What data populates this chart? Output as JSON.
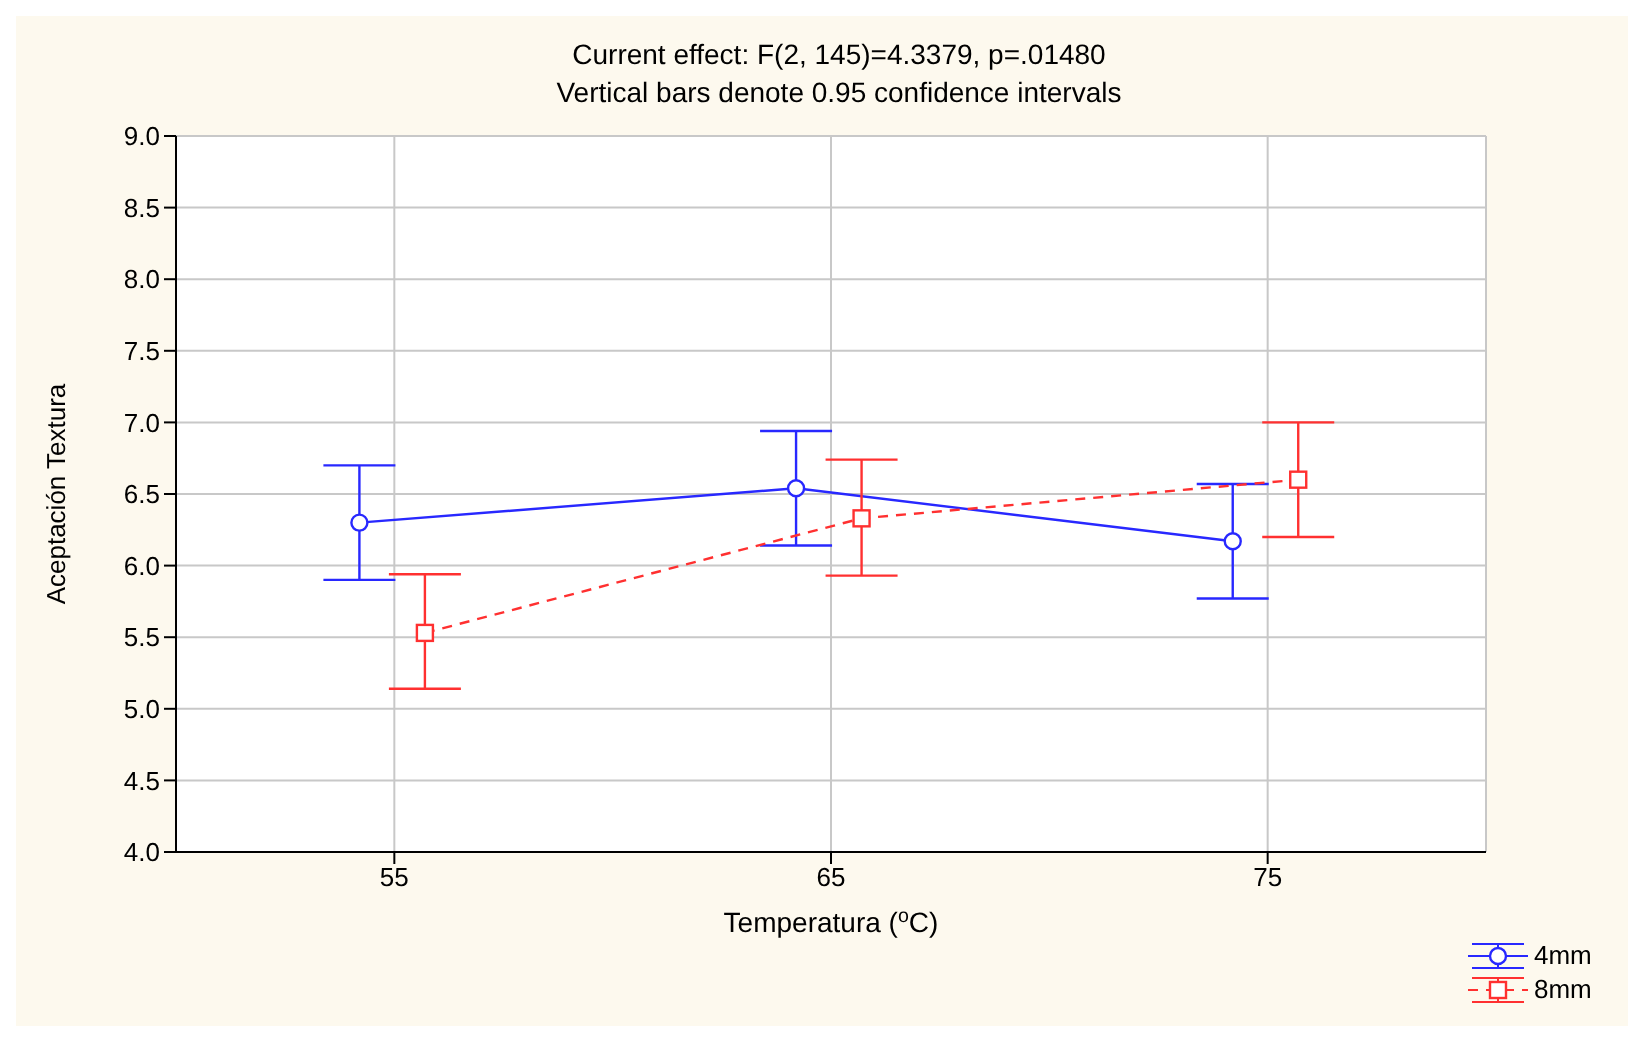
{
  "chart_data": {
    "type": "line",
    "title": "Current effect: F(2, 145)=4.3379, p=.01480",
    "subtitle": "Vertical bars denote 0.95 confidence intervals",
    "xlabel": "Temperatura ($^{o}$C)",
    "ylabel": "Aceptación Textura",
    "xlim": [
      50,
      80
    ],
    "xticks": [
      55,
      65,
      75
    ],
    "ylim": [
      4,
      9
    ],
    "yticks": [
      {
        "value": 4,
        "label": "4.0"
      },
      {
        "value": 4.5,
        "label": "4.5"
      },
      {
        "value": 5,
        "label": "5.0"
      },
      {
        "value": 5.5,
        "label": "5.5"
      },
      {
        "value": 6,
        "label": "6.0"
      },
      {
        "value": 6.5,
        "label": "6.5"
      },
      {
        "value": 7,
        "label": "7.0"
      },
      {
        "value": 7.5,
        "label": "7.5"
      },
      {
        "value": 8,
        "label": "8.0"
      },
      {
        "value": 8.5,
        "label": "8.5"
      },
      {
        "value": 9,
        "label": "9.0"
      }
    ],
    "grid": true,
    "legend": "bottom right",
    "series": [
      {
        "name": "4mm",
        "color": "#2828ff",
        "marker": "circle",
        "line_style": "solid",
        "x": [
          54.2,
          64.2,
          74.2
        ],
        "values": [
          6.3,
          6.54,
          6.17
        ],
        "errors": [
          [
            5.9,
            6.7
          ],
          [
            6.14,
            6.94
          ],
          [
            5.77,
            6.57
          ]
        ]
      },
      {
        "name": "8mm",
        "color": "#ff3030",
        "marker": "square",
        "line_style": "dashed",
        "x": [
          55.7,
          65.7,
          75.7
        ],
        "values": [
          5.53,
          6.33,
          6.6
        ],
        "errors": [
          [
            5.14,
            5.94
          ],
          [
            5.93,
            6.74
          ],
          [
            6.2,
            7.0
          ]
        ]
      }
    ]
  }
}
